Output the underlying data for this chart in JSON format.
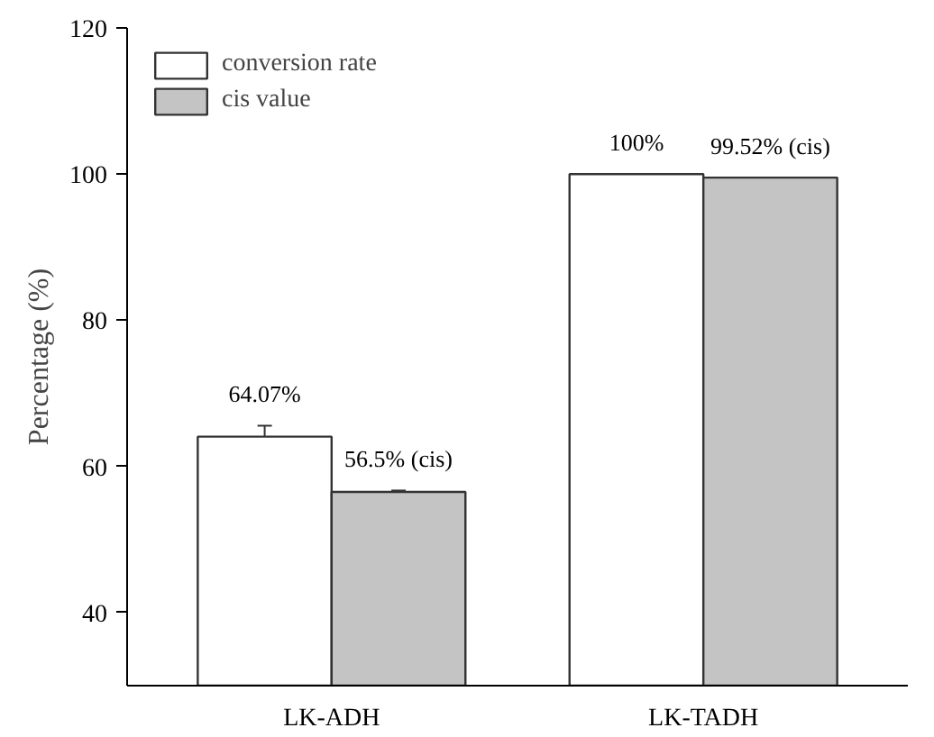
{
  "chart_data": {
    "type": "bar",
    "ylabel": "Percentage (%)",
    "categories": [
      "LK-ADH",
      "LK-TADH"
    ],
    "series": [
      {
        "name": "conversion rate",
        "color": "#ffffff",
        "values": [
          64.07,
          100
        ],
        "errors": [
          1.5,
          null
        ],
        "value_labels": [
          "64.07%",
          "100%"
        ]
      },
      {
        "name": "cis value",
        "color": "#c4c4c4",
        "values": [
          56.5,
          99.52
        ],
        "errors": [
          0.2,
          null
        ],
        "value_labels": [
          "56.5% (cis)",
          "99.52% (cis)"
        ]
      }
    ],
    "ylim": [
      30,
      120
    ],
    "yticks": [
      40,
      60,
      80,
      100,
      120
    ],
    "grid": false,
    "legend": "top left"
  }
}
